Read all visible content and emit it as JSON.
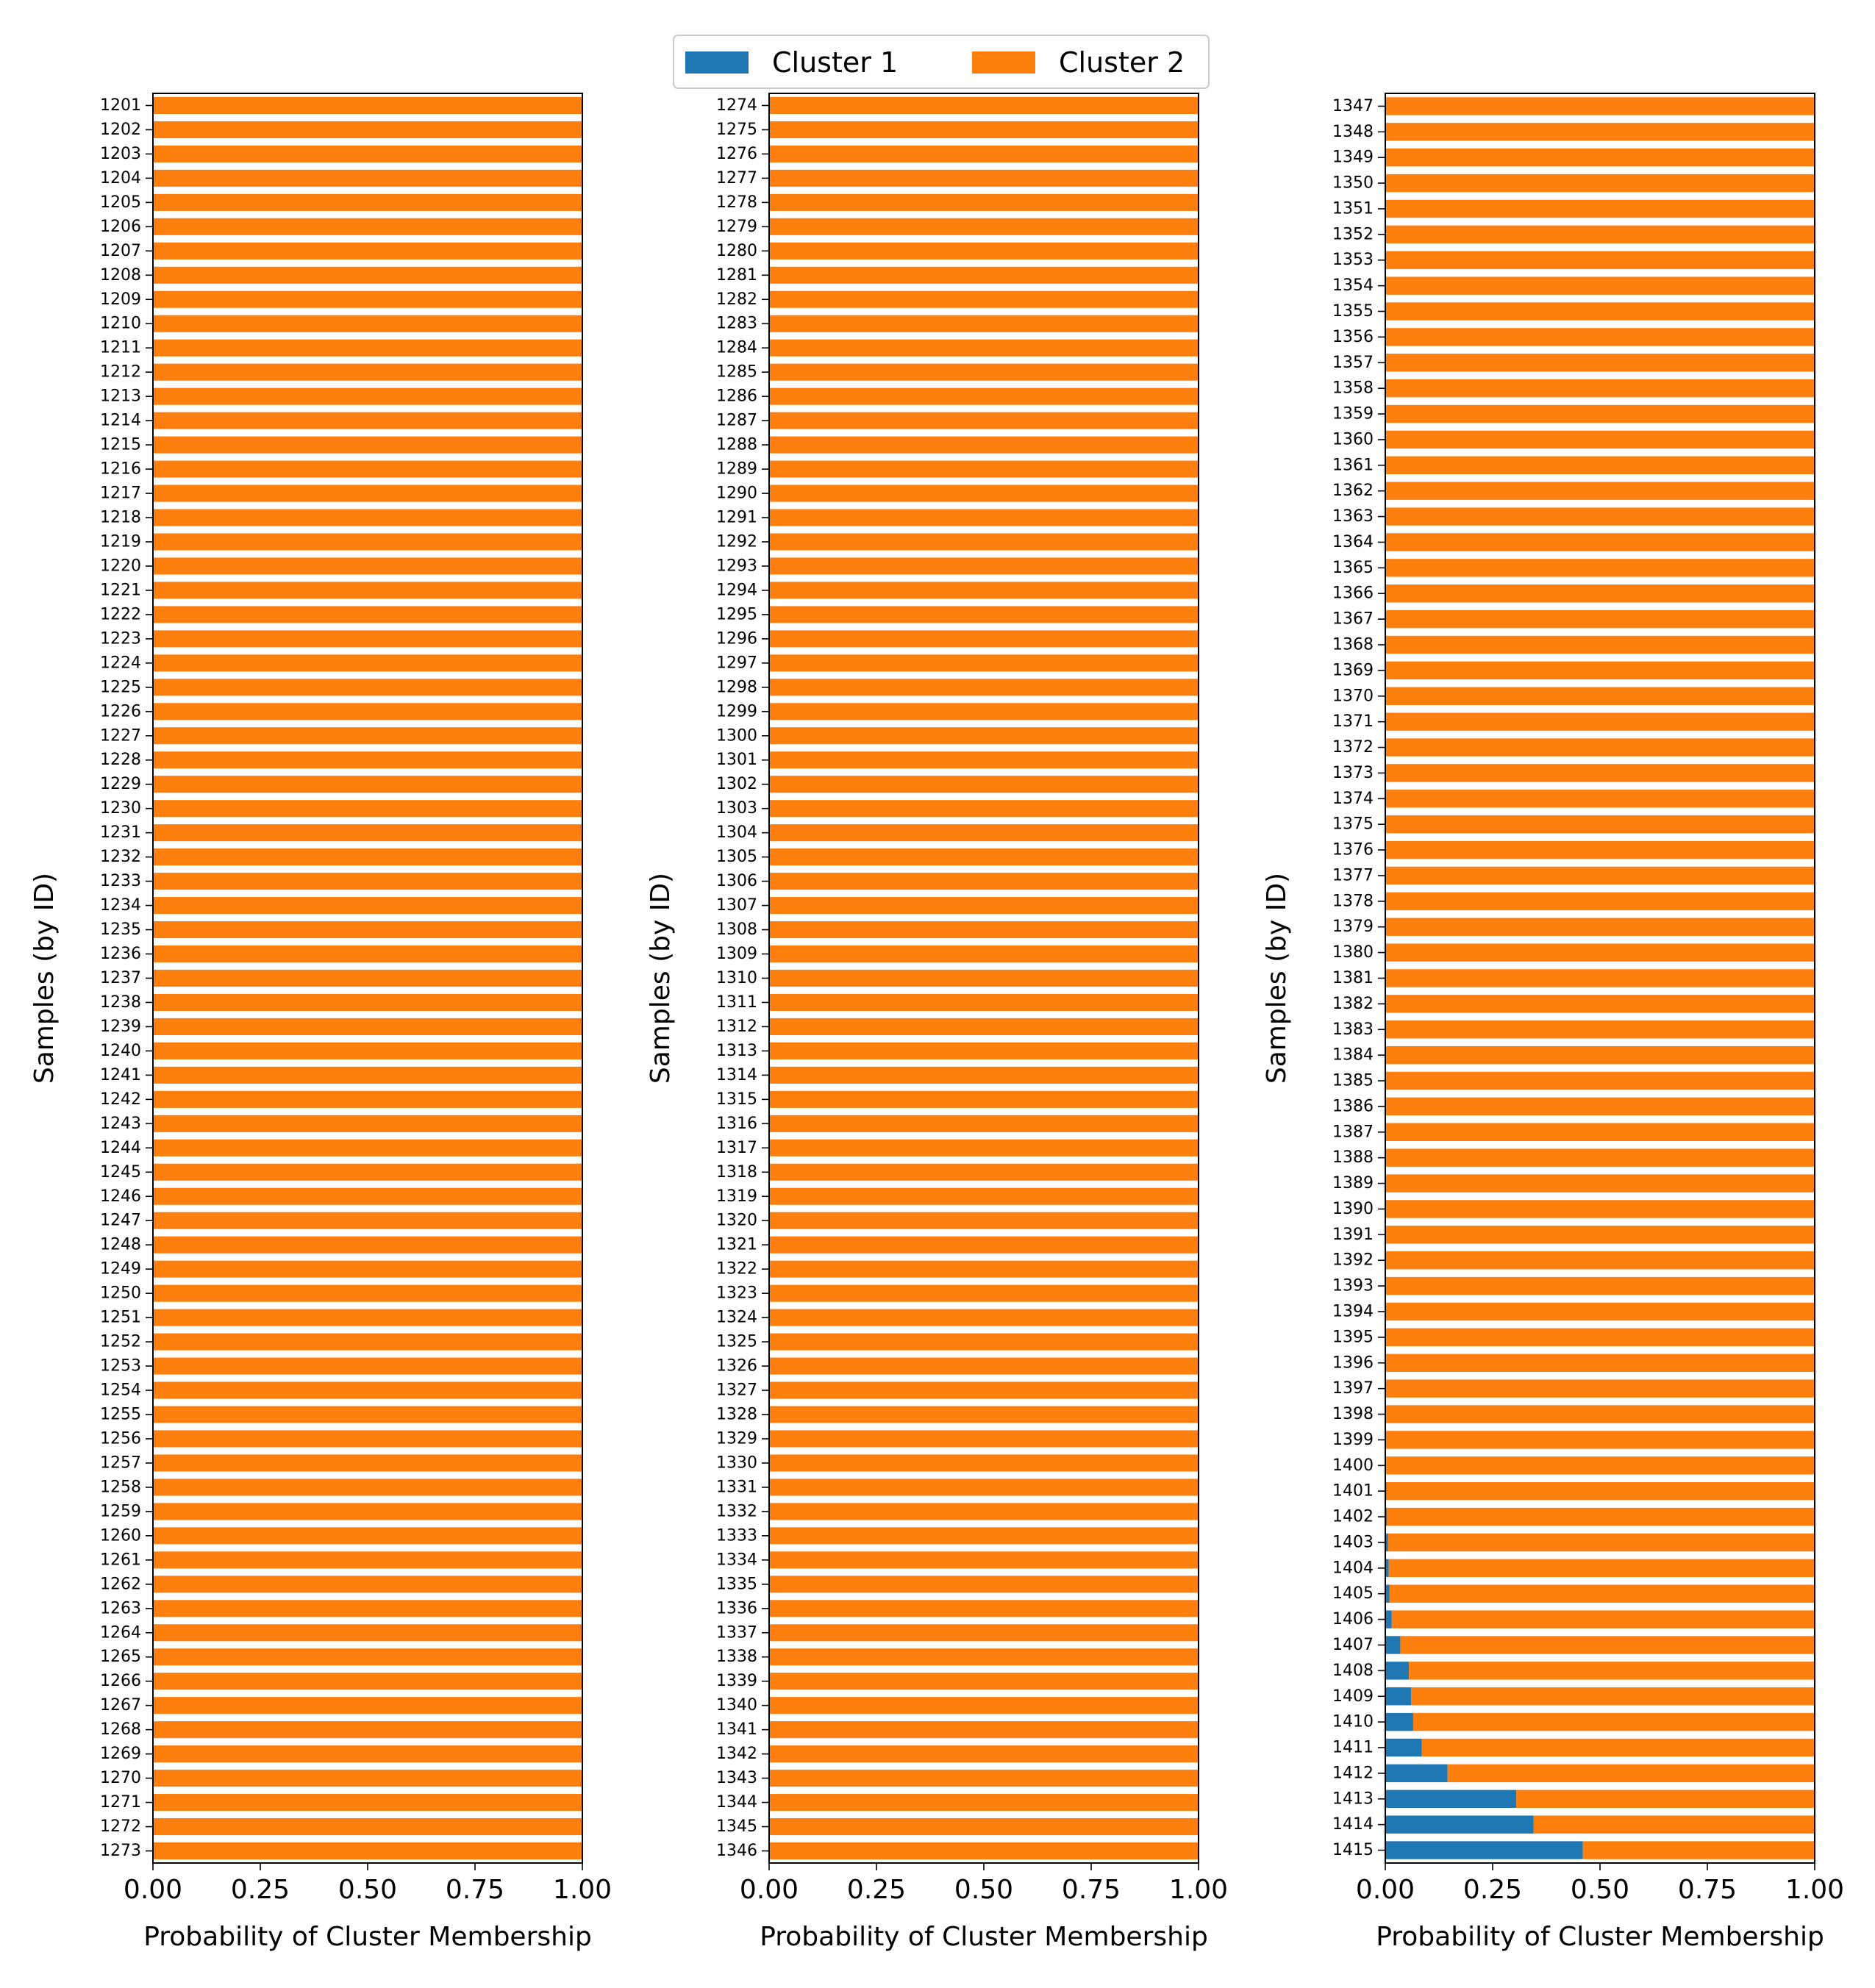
{
  "chart_data": {
    "type": "bar",
    "orientation": "horizontal",
    "stacked": true,
    "legend": {
      "placement": "top-center",
      "entries": [
        {
          "label": "Cluster 1",
          "color": "#1f77b4"
        },
        {
          "label": "Cluster 2",
          "color": "#ff7f0e"
        }
      ]
    },
    "grid": false,
    "panels": [
      {
        "xlabel": "Probability of Cluster Membership",
        "ylabel": "Samples (by ID)",
        "xlim": [
          0,
          1
        ],
        "xticks": [
          "0.00",
          "0.25",
          "0.50",
          "0.75",
          "1.00"
        ],
        "categories": [
          "1201",
          "1202",
          "1203",
          "1204",
          "1205",
          "1206",
          "1207",
          "1208",
          "1209",
          "1210",
          "1211",
          "1212",
          "1213",
          "1214",
          "1215",
          "1216",
          "1217",
          "1218",
          "1219",
          "1220",
          "1221",
          "1222",
          "1223",
          "1224",
          "1225",
          "1226",
          "1227",
          "1228",
          "1229",
          "1230",
          "1231",
          "1232",
          "1233",
          "1234",
          "1235",
          "1236",
          "1237",
          "1238",
          "1239",
          "1240",
          "1241",
          "1242",
          "1243",
          "1244",
          "1245",
          "1246",
          "1247",
          "1248",
          "1249",
          "1250",
          "1251",
          "1252",
          "1253",
          "1254",
          "1255",
          "1256",
          "1257",
          "1258",
          "1259",
          "1260",
          "1261",
          "1262",
          "1263",
          "1264",
          "1265",
          "1266",
          "1267",
          "1268",
          "1269",
          "1270",
          "1271",
          "1272",
          "1273"
        ],
        "series": [
          {
            "name": "Cluster 1",
            "values": [
              0,
              0,
              0,
              0,
              0,
              0,
              0,
              0,
              0,
              0,
              0,
              0,
              0,
              0,
              0,
              0,
              0,
              0,
              0,
              0,
              0,
              0,
              0,
              0,
              0,
              0,
              0,
              0,
              0,
              0,
              0,
              0,
              0,
              0,
              0,
              0,
              0,
              0,
              0,
              0,
              0,
              0,
              0,
              0,
              0,
              0,
              0,
              0,
              0,
              0,
              0,
              0,
              0,
              0,
              0,
              0,
              0,
              0,
              0,
              0,
              0,
              0,
              0,
              0,
              0,
              0,
              0,
              0,
              0,
              0,
              0,
              0,
              0
            ]
          },
          {
            "name": "Cluster 2",
            "values": [
              1,
              1,
              1,
              1,
              1,
              1,
              1,
              1,
              1,
              1,
              1,
              1,
              1,
              1,
              1,
              1,
              1,
              1,
              1,
              1,
              1,
              1,
              1,
              1,
              1,
              1,
              1,
              1,
              1,
              1,
              1,
              1,
              1,
              1,
              1,
              1,
              1,
              1,
              1,
              1,
              1,
              1,
              1,
              1,
              1,
              1,
              1,
              1,
              1,
              1,
              1,
              1,
              1,
              1,
              1,
              1,
              1,
              1,
              1,
              1,
              1,
              1,
              1,
              1,
              1,
              1,
              1,
              1,
              1,
              1,
              1,
              1,
              1
            ]
          }
        ]
      },
      {
        "xlabel": "Probability of Cluster Membership",
        "ylabel": "Samples (by ID)",
        "xlim": [
          0,
          1
        ],
        "xticks": [
          "0.00",
          "0.25",
          "0.50",
          "0.75",
          "1.00"
        ],
        "categories": [
          "1274",
          "1275",
          "1276",
          "1277",
          "1278",
          "1279",
          "1280",
          "1281",
          "1282",
          "1283",
          "1284",
          "1285",
          "1286",
          "1287",
          "1288",
          "1289",
          "1290",
          "1291",
          "1292",
          "1293",
          "1294",
          "1295",
          "1296",
          "1297",
          "1298",
          "1299",
          "1300",
          "1301",
          "1302",
          "1303",
          "1304",
          "1305",
          "1306",
          "1307",
          "1308",
          "1309",
          "1310",
          "1311",
          "1312",
          "1313",
          "1314",
          "1315",
          "1316",
          "1317",
          "1318",
          "1319",
          "1320",
          "1321",
          "1322",
          "1323",
          "1324",
          "1325",
          "1326",
          "1327",
          "1328",
          "1329",
          "1330",
          "1331",
          "1332",
          "1333",
          "1334",
          "1335",
          "1336",
          "1337",
          "1338",
          "1339",
          "1340",
          "1341",
          "1342",
          "1343",
          "1344",
          "1345",
          "1346"
        ],
        "series": [
          {
            "name": "Cluster 1",
            "values": [
              0,
              0,
              0,
              0,
              0,
              0,
              0,
              0,
              0,
              0,
              0,
              0,
              0,
              0,
              0,
              0,
              0,
              0,
              0,
              0,
              0,
              0,
              0,
              0,
              0,
              0,
              0,
              0,
              0,
              0,
              0,
              0,
              0,
              0,
              0,
              0,
              0,
              0,
              0,
              0,
              0,
              0,
              0,
              0,
              0,
              0,
              0,
              0,
              0,
              0,
              0,
              0,
              0,
              0,
              0,
              0,
              0,
              0,
              0,
              0,
              0,
              0,
              0,
              0,
              0,
              0,
              0,
              0,
              0,
              0,
              0,
              0,
              0
            ]
          },
          {
            "name": "Cluster 2",
            "values": [
              1,
              1,
              1,
              1,
              1,
              1,
              1,
              1,
              1,
              1,
              1,
              1,
              1,
              1,
              1,
              1,
              1,
              1,
              1,
              1,
              1,
              1,
              1,
              1,
              1,
              1,
              1,
              1,
              1,
              1,
              1,
              1,
              1,
              1,
              1,
              1,
              1,
              1,
              1,
              1,
              1,
              1,
              1,
              1,
              1,
              1,
              1,
              1,
              1,
              1,
              1,
              1,
              1,
              1,
              1,
              1,
              1,
              1,
              1,
              1,
              1,
              1,
              1,
              1,
              1,
              1,
              1,
              1,
              1,
              1,
              1,
              1,
              1
            ]
          }
        ]
      },
      {
        "xlabel": "Probability of Cluster Membership",
        "ylabel": "Samples (by ID)",
        "xlim": [
          0,
          1
        ],
        "xticks": [
          "0.00",
          "0.25",
          "0.50",
          "0.75",
          "1.00"
        ],
        "categories": [
          "1347",
          "1348",
          "1349",
          "1350",
          "1351",
          "1352",
          "1353",
          "1354",
          "1355",
          "1356",
          "1357",
          "1358",
          "1359",
          "1360",
          "1361",
          "1362",
          "1363",
          "1364",
          "1365",
          "1366",
          "1367",
          "1368",
          "1369",
          "1370",
          "1371",
          "1372",
          "1373",
          "1374",
          "1375",
          "1376",
          "1377",
          "1378",
          "1379",
          "1380",
          "1381",
          "1382",
          "1383",
          "1384",
          "1385",
          "1386",
          "1387",
          "1388",
          "1389",
          "1390",
          "1391",
          "1392",
          "1393",
          "1394",
          "1395",
          "1396",
          "1397",
          "1398",
          "1399",
          "1400",
          "1401",
          "1402",
          "1403",
          "1404",
          "1405",
          "1406",
          "1407",
          "1408",
          "1409",
          "1410",
          "1411",
          "1412",
          "1413",
          "1414",
          "1415"
        ],
        "series": [
          {
            "name": "Cluster 1",
            "values": [
              0,
              0,
              0,
              0,
              0,
              0,
              0,
              0,
              0,
              0,
              0,
              0,
              0,
              0,
              0,
              0,
              0,
              0,
              0,
              0,
              0,
              0,
              0,
              0,
              0,
              0,
              0,
              0,
              0,
              0,
              0,
              0,
              0,
              0,
              0,
              0,
              0,
              0,
              0,
              0,
              0,
              0,
              0,
              0,
              0,
              0,
              0,
              0,
              0,
              0,
              0,
              0,
              0.001,
              0.002,
              0.003,
              0.004,
              0.006,
              0.008,
              0.01,
              0.015,
              0.035,
              0.055,
              0.06,
              0.065,
              0.085,
              0.145,
              0.305,
              0.345,
              0.46
            ]
          },
          {
            "name": "Cluster 2",
            "values": [
              1,
              1,
              1,
              1,
              1,
              1,
              1,
              1,
              1,
              1,
              1,
              1,
              1,
              1,
              1,
              1,
              1,
              1,
              1,
              1,
              1,
              1,
              1,
              1,
              1,
              1,
              1,
              1,
              1,
              1,
              1,
              1,
              1,
              1,
              1,
              1,
              1,
              1,
              1,
              1,
              1,
              1,
              1,
              1,
              1,
              1,
              1,
              1,
              1,
              1,
              1,
              1,
              0.999,
              0.998,
              0.997,
              0.996,
              0.994,
              0.992,
              0.99,
              0.985,
              0.965,
              0.945,
              0.94,
              0.935,
              0.915,
              0.855,
              0.695,
              0.655,
              0.54
            ]
          }
        ]
      }
    ]
  }
}
